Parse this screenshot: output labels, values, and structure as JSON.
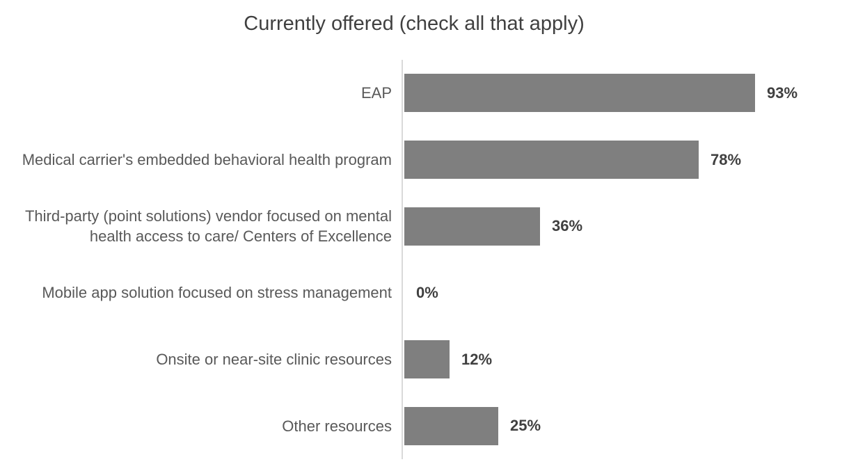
{
  "chart_data": {
    "type": "bar",
    "orientation": "horizontal",
    "title": "Currently offered (check all that apply)",
    "categories": [
      "EAP",
      "Medical carrier's embedded behavioral health program",
      "Third-party (point solutions) vendor focused on mental health access to care/ Centers of Excellence",
      "Mobile app solution focused on stress management",
      "Onsite or near-site clinic resources",
      "Other resources"
    ],
    "values": [
      93,
      78,
      36,
      0,
      12,
      25
    ],
    "value_labels": [
      "93%",
      "78%",
      "36%",
      "0%",
      "12%",
      "25%"
    ],
    "xlabel": "",
    "ylabel": "",
    "xlim": [
      0,
      100
    ],
    "grid": false,
    "legend": false,
    "colors": {
      "bar": "#7f7f7f",
      "axis_line": "#d9d9d9",
      "title": "#404040",
      "category_label": "#595959",
      "value_label": "#404040",
      "background": "#ffffff"
    }
  }
}
